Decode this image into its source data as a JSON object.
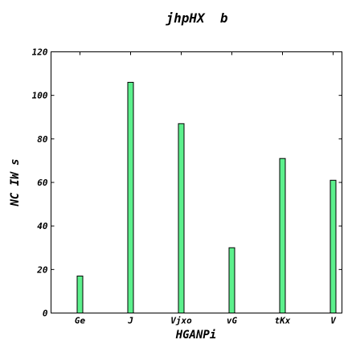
{
  "chart_data": {
    "type": "bar",
    "title": "jhpHX  b",
    "xlabel": "HGANPi",
    "ylabel": "NC IW s",
    "categories": [
      "Ge",
      "J",
      "Vjxo",
      "vG",
      "tKx",
      "V"
    ],
    "values": [
      17,
      106,
      87,
      30,
      71,
      61
    ],
    "ylim": [
      0,
      120
    ],
    "yticks": [
      0,
      20,
      40,
      60,
      80,
      100,
      120
    ],
    "bar_color": "#5cf08c",
    "grid": false,
    "legend": "none"
  }
}
